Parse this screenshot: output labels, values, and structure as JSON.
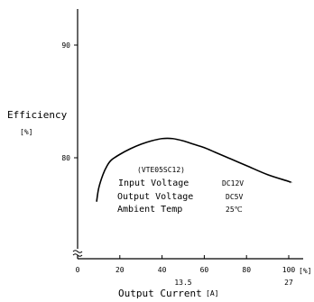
{
  "chart_data": {
    "type": "line",
    "title": "",
    "xlabel": "Output Current",
    "xlabel_unit": "[A]",
    "ylabel": "Efficiency",
    "ylabel_unit": "[%]",
    "x_percent_ticks": [
      0,
      20,
      40,
      60,
      80,
      100
    ],
    "x_percent_unit": "[%]",
    "x_ampere_ticks": [
      {
        "pct": 50,
        "label": "13.5"
      },
      {
        "pct": 100,
        "label": "27"
      }
    ],
    "y_ticks": [
      80,
      90
    ],
    "xlim": [
      0,
      110
    ],
    "ylim": [
      73,
      93
    ],
    "y_axis_break": true,
    "grid": false,
    "series": [
      {
        "x": [
          9,
          10,
          12,
          14,
          16,
          20,
          25,
          30,
          35,
          40,
          45,
          50,
          55,
          60,
          65,
          70,
          80,
          90,
          100,
          101
        ],
        "y": [
          76.1,
          77.3,
          78.5,
          79.3,
          79.8,
          80.3,
          80.8,
          81.2,
          81.5,
          81.7,
          81.7,
          81.5,
          81.2,
          80.9,
          80.5,
          80.1,
          79.3,
          78.5,
          77.9,
          77.8
        ]
      }
    ],
    "annotation": {
      "model": "(VTE05SC12)",
      "rows": [
        {
          "label": "Input Voltage",
          "value": "DC12V"
        },
        {
          "label": "Output Voltage",
          "value": "DC5V"
        },
        {
          "label": "Ambient Temp",
          "value": "25℃"
        }
      ]
    }
  }
}
